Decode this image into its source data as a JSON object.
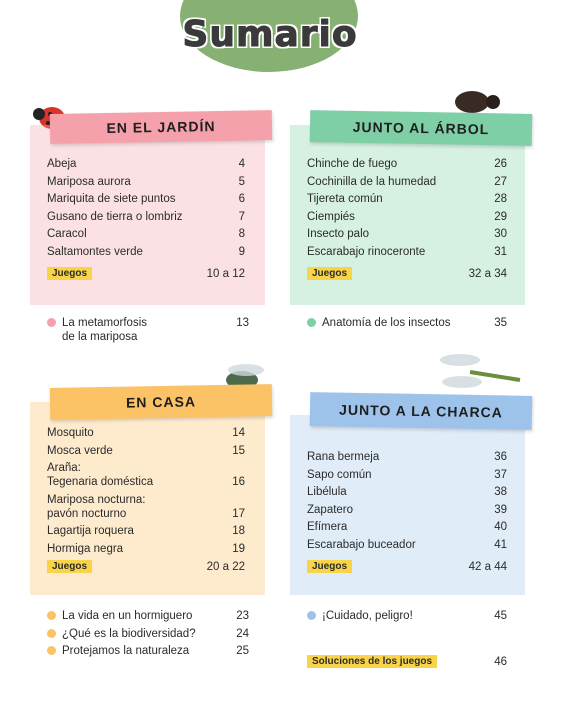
{
  "title": "Sumario",
  "sections": [
    {
      "heading": "EN EL JARDÍN",
      "color": "#f4a1ab",
      "entries": [
        {
          "label": "Abeja",
          "page": 4
        },
        {
          "label": "Mariposa aurora",
          "page": 5
        },
        {
          "label": "Mariquita de siete puntos",
          "page": 6
        },
        {
          "label": "Gusano de tierra o lombriz",
          "page": 7
        },
        {
          "label": "Caracol",
          "page": 8
        },
        {
          "label": "Saltamontes verde",
          "page": 9
        }
      ],
      "games": {
        "label": "Juegos",
        "pages": "10 a 12"
      },
      "extras": [
        {
          "label": "La metamorfosis\nde la mariposa",
          "page": 13
        }
      ]
    },
    {
      "heading": "JUNTO AL ÁRBOL",
      "color": "#7fcfa6",
      "entries": [
        {
          "label": "Chinche de fuego",
          "page": 26
        },
        {
          "label": "Cochinilla de la humedad",
          "page": 27
        },
        {
          "label": "Tijereta común",
          "page": 28
        },
        {
          "label": "Ciempiés",
          "page": 29
        },
        {
          "label": "Insecto palo",
          "page": 30
        },
        {
          "label": "Escarabajo rinoceronte",
          "page": 31
        }
      ],
      "games": {
        "label": "Juegos",
        "pages": "32 a 34"
      },
      "extras": [
        {
          "label": "Anatomía de los insectos",
          "page": 35
        }
      ]
    },
    {
      "heading": "EN CASA",
      "color": "#fbc266",
      "entries": [
        {
          "label": "Mosquito",
          "page": 14
        },
        {
          "label": "Mosca verde",
          "page": 15
        },
        {
          "label": "Araña:\nTegenaria doméstica",
          "page": 16
        },
        {
          "label": "Mariposa nocturna:\npavón nocturno",
          "page": 17
        },
        {
          "label": "Lagartija roquera",
          "page": 18
        },
        {
          "label": "Hormiga negra",
          "page": 19
        }
      ],
      "games": {
        "label": "Juegos",
        "pages": "20 a 22"
      },
      "extras": [
        {
          "label": "La vida en un hormiguero",
          "page": 23
        },
        {
          "label": "¿Qué es la biodiversidad?",
          "page": 24
        },
        {
          "label": "Protejamos la naturaleza",
          "page": 25
        }
      ]
    },
    {
      "heading": "JUNTO A LA CHARCA",
      "color": "#9ec3ea",
      "entries": [
        {
          "label": "Rana bermeja",
          "page": 36
        },
        {
          "label": "Sapo común",
          "page": 37
        },
        {
          "label": "Libélula",
          "page": 38
        },
        {
          "label": "Zapatero",
          "page": 39
        },
        {
          "label": "Efímera",
          "page": 40
        },
        {
          "label": "Escarabajo buceador",
          "page": 41
        }
      ],
      "games": {
        "label": "Juegos",
        "pages": "42 a 44"
      },
      "extras": [
        {
          "label": "¡Cuidado, peligro!",
          "page": 45
        }
      ]
    }
  ],
  "footer": {
    "label": "Soluciones de los juegos",
    "page": 46
  }
}
